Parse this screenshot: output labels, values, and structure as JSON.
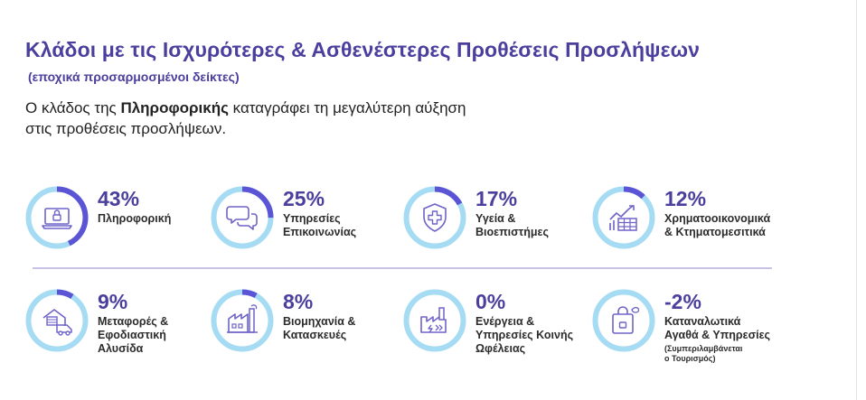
{
  "header": {
    "title": "Κλάδοι με τις Ισχυρότερες & Ασθενέστερες Προθέσεις Προσλήψεων",
    "subtitle": "(εποχικά προσαρμοσμένοι δείκτες)",
    "lead_part1": "Ο κλάδος της ",
    "lead_bold": "Πληροφορικής",
    "lead_part2": " καταγράφει τη μεγαλύτερη αύξηση",
    "lead_line2": "στις προθέσεις προσλήψεων."
  },
  "colors": {
    "accent": "#4b3f9e",
    "ring_track": "#a6dcf3",
    "ring_value": "#5b55d6",
    "divider": "#c7c3e6"
  },
  "sectors": [
    {
      "value": 43,
      "value_label": "43%",
      "lines": [
        "Πληροφορική"
      ],
      "icon": "laptop-lock-icon"
    },
    {
      "value": 25,
      "value_label": "25%",
      "lines": [
        "Υπηρεσίες",
        "Επικοινωνίας"
      ],
      "icon": "chat-bubbles-icon"
    },
    {
      "value": 17,
      "value_label": "17%",
      "lines": [
        "Υγεία &",
        "Βιοεπιστήμες"
      ],
      "icon": "medical-shield-icon"
    },
    {
      "value": 12,
      "value_label": "12%",
      "lines": [
        "Χρηματοοικονομικά",
        "& Κτηματομεσιτικά"
      ],
      "icon": "finance-chart-icon"
    },
    {
      "value": 9,
      "value_label": "9%",
      "lines": [
        "Μεταφορές &",
        "Εφοδιαστική",
        "Αλυσίδα"
      ],
      "icon": "truck-warehouse-icon"
    },
    {
      "value": 8,
      "value_label": "8%",
      "lines": [
        "Βιομηχανία &",
        "Κατασκευές"
      ],
      "icon": "factory-icon"
    },
    {
      "value": 0,
      "value_label": "0%",
      "lines": [
        "Ενέργεια &",
        "Υπηρεσίες Κοινής",
        "Ωφέλειας"
      ],
      "icon": "energy-plant-icon"
    },
    {
      "value": -2,
      "value_label": "-2%",
      "lines": [
        "Καταναλωτικά",
        "Αγαθά & Υπηρεσίες"
      ],
      "note_lines": [
        "(Συμπεριλαμβάνεται",
        "ο Τουρισμός)"
      ],
      "icon": "shopping-bag-icon"
    }
  ]
}
